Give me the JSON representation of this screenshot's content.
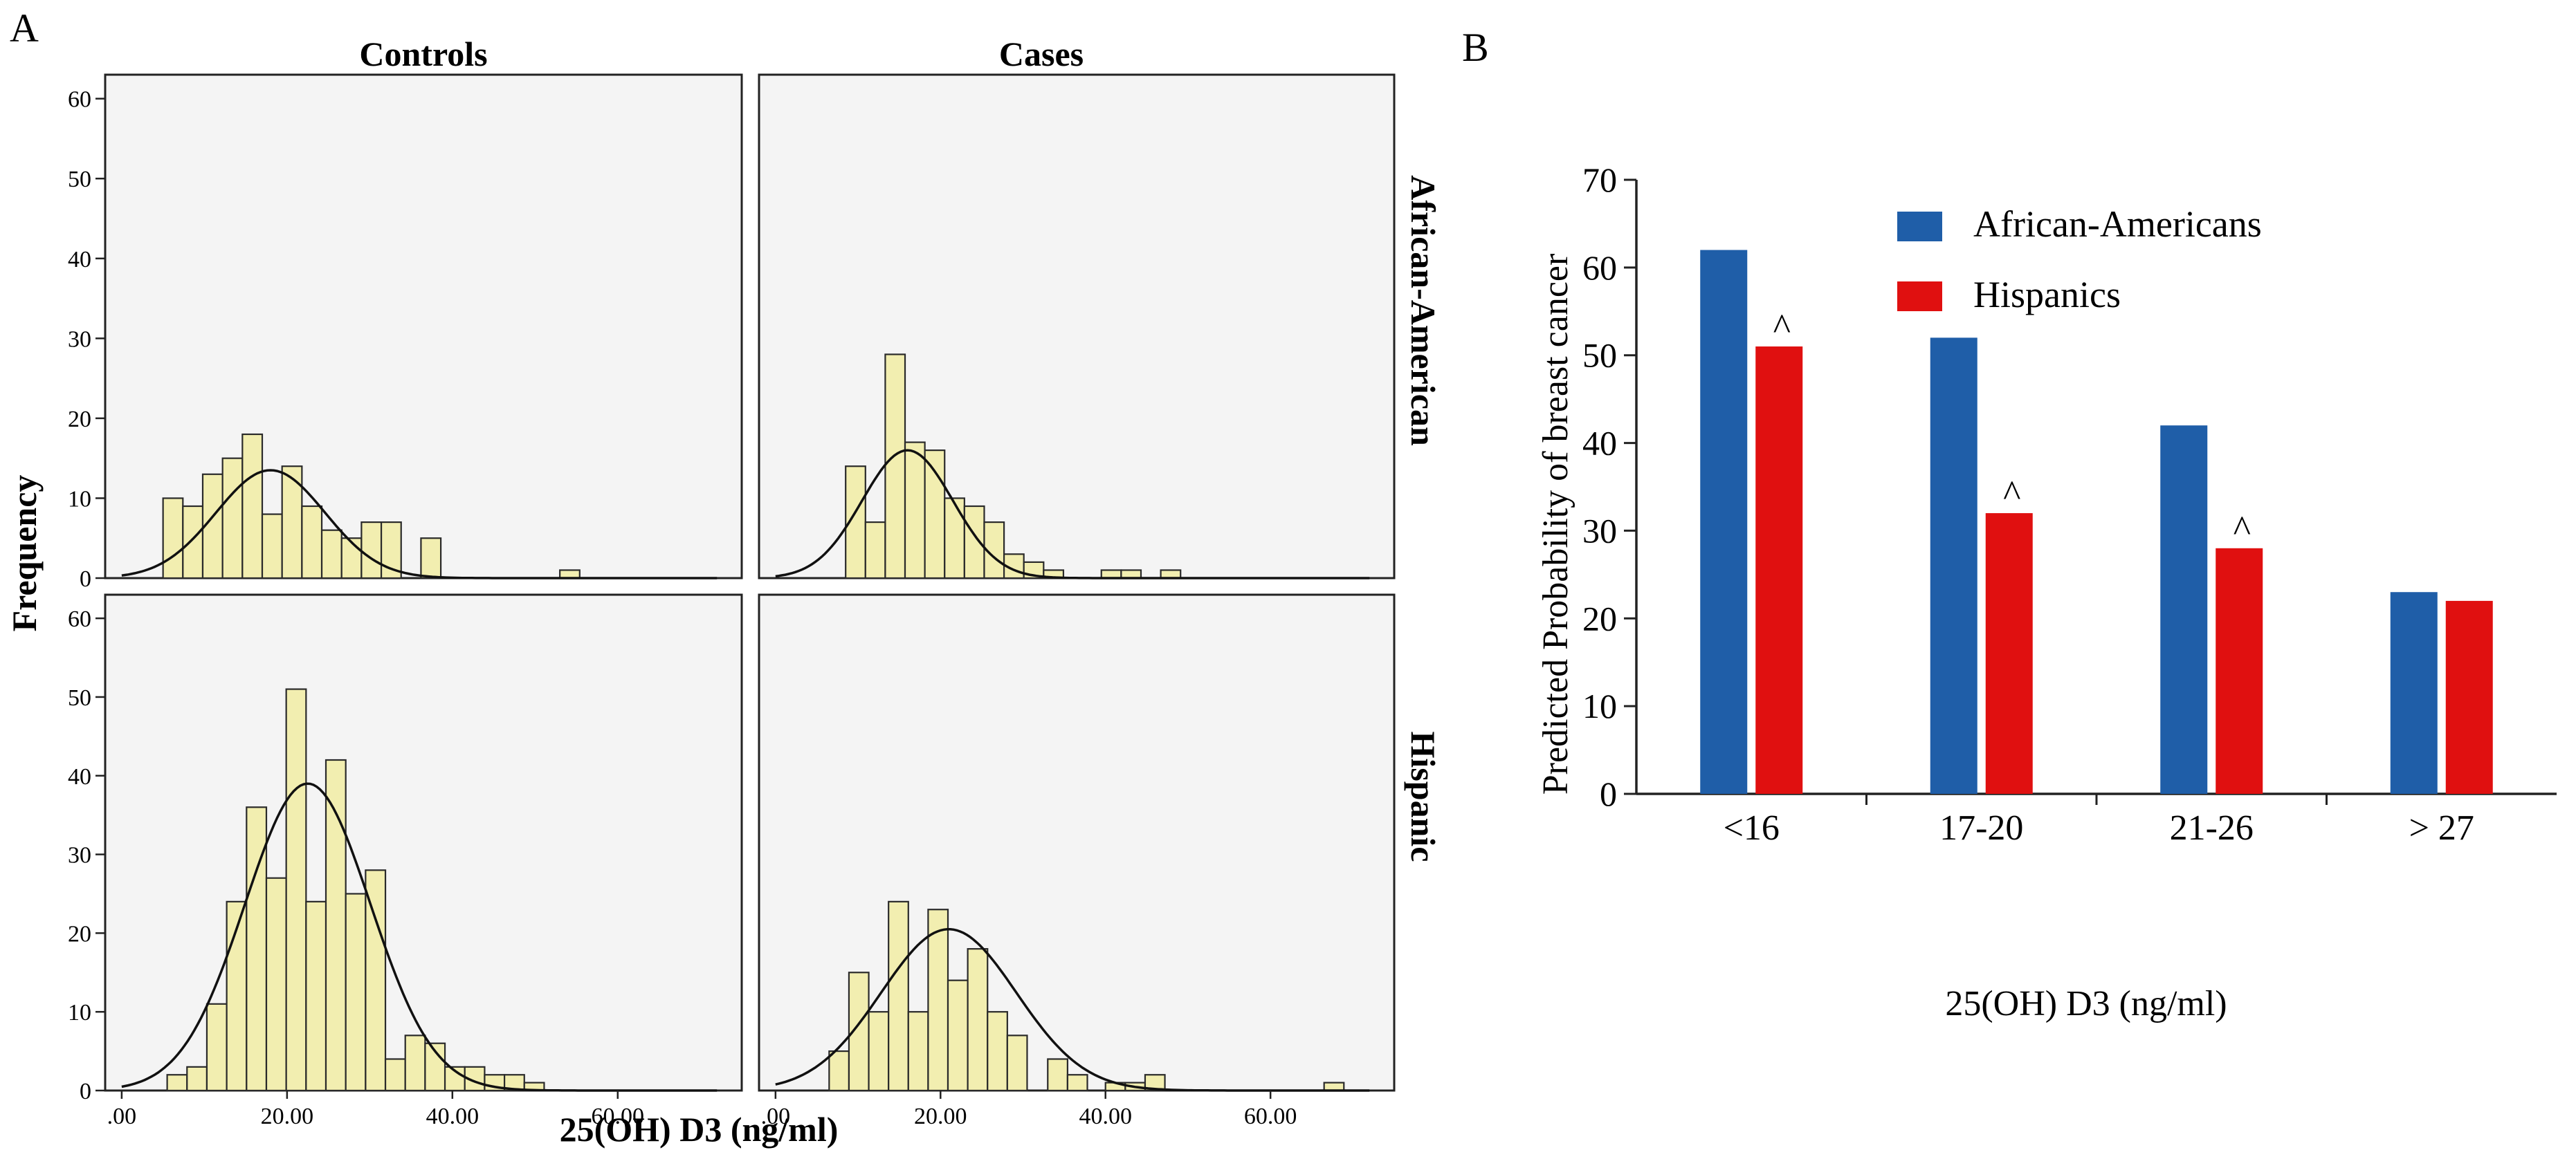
{
  "chart_data": [
    {
      "type": "histogram",
      "panel_label": "A",
      "col_titles": [
        "Controls",
        "Cases"
      ],
      "row_titles": [
        "African-American",
        "Hispanic"
      ],
      "xlabel": "25(OH) D3 (ng/ml)",
      "ylabel": "Frequency",
      "xlim": [
        -2,
        75
      ],
      "ylim": [
        0,
        63
      ],
      "xticks": [
        ".00",
        "20.00",
        "40.00",
        "60.00"
      ],
      "xtick_values": [
        0,
        20,
        40,
        60
      ],
      "yticks": [
        0,
        10,
        20,
        30,
        40,
        50,
        60
      ],
      "bin_width": 2.4,
      "bar_color": "#f2eeb0",
      "panels": [
        {
          "col": "Controls",
          "row": "African-American",
          "bins": [
            [
              5,
              10
            ],
            [
              7.4,
              9
            ],
            [
              9.8,
              13
            ],
            [
              12.2,
              15
            ],
            [
              14.6,
              18
            ],
            [
              17,
              8
            ],
            [
              19.4,
              14
            ],
            [
              21.8,
              9
            ],
            [
              24.2,
              6
            ],
            [
              26.6,
              5
            ],
            [
              29,
              7
            ],
            [
              31.4,
              7
            ],
            [
              36.2,
              5
            ],
            [
              53,
              1
            ]
          ],
          "curve": {
            "mean": 18,
            "sd": 6.6,
            "peak": 13.5
          }
        },
        {
          "col": "Cases",
          "row": "African-American",
          "bins": [
            [
              8.5,
              14
            ],
            [
              10.9,
              7
            ],
            [
              13.3,
              28
            ],
            [
              15.7,
              17
            ],
            [
              18.1,
              16
            ],
            [
              20.5,
              10
            ],
            [
              22.9,
              9
            ],
            [
              25.3,
              7
            ],
            [
              27.7,
              3
            ],
            [
              30.1,
              2
            ],
            [
              32.5,
              1
            ],
            [
              39.5,
              1
            ],
            [
              41.9,
              1
            ],
            [
              46.7,
              1
            ]
          ],
          "curve": {
            "mean": 16,
            "sd": 5.5,
            "peak": 16
          }
        },
        {
          "col": "Controls",
          "row": "Hispanic",
          "bins": [
            [
              5.5,
              2
            ],
            [
              7.9,
              3
            ],
            [
              10.3,
              11
            ],
            [
              12.7,
              24
            ],
            [
              15.1,
              36
            ],
            [
              17.5,
              27
            ],
            [
              19.9,
              51
            ],
            [
              22.3,
              24
            ],
            [
              24.7,
              42
            ],
            [
              27.1,
              25
            ],
            [
              29.5,
              28
            ],
            [
              31.9,
              4
            ],
            [
              34.3,
              7
            ],
            [
              36.7,
              6
            ],
            [
              39.1,
              3
            ],
            [
              41.5,
              3
            ],
            [
              43.9,
              2
            ],
            [
              46.3,
              2
            ],
            [
              48.7,
              1
            ]
          ],
          "curve": {
            "mean": 22.5,
            "sd": 7.6,
            "peak": 39
          }
        },
        {
          "col": "Cases",
          "row": "Hispanic",
          "bins": [
            [
              6.5,
              5
            ],
            [
              8.9,
              15
            ],
            [
              11.3,
              10
            ],
            [
              13.7,
              24
            ],
            [
              16.1,
              10
            ],
            [
              18.5,
              23
            ],
            [
              20.9,
              14
            ],
            [
              23.3,
              18
            ],
            [
              25.7,
              10
            ],
            [
              28.1,
              7
            ],
            [
              33,
              4
            ],
            [
              35.4,
              2
            ],
            [
              40,
              1
            ],
            [
              42.4,
              1
            ],
            [
              44.8,
              2
            ],
            [
              66.5,
              1
            ]
          ],
          "curve": {
            "mean": 21,
            "sd": 8.2,
            "peak": 20.5
          }
        }
      ]
    },
    {
      "type": "bar",
      "panel_label": "B",
      "categories": [
        "<16",
        "17-20",
        "21-26",
        "> 27"
      ],
      "series": [
        {
          "name": "African-Americans",
          "color": "#1f5ea8",
          "values": [
            62,
            52,
            42,
            23
          ]
        },
        {
          "name": "Hispanics",
          "color": "#e01010",
          "values": [
            51,
            32,
            28,
            22
          ]
        }
      ],
      "annotations": [
        "^",
        "^",
        "^",
        null
      ],
      "xlabel": "25(OH) D3 (ng/ml)",
      "ylabel": "Predicted Probability of breast cancer",
      "ylim": [
        0,
        70
      ],
      "yticks": [
        0,
        10,
        20,
        30,
        40,
        50,
        60,
        70
      ],
      "legend_position": "top-right"
    }
  ]
}
